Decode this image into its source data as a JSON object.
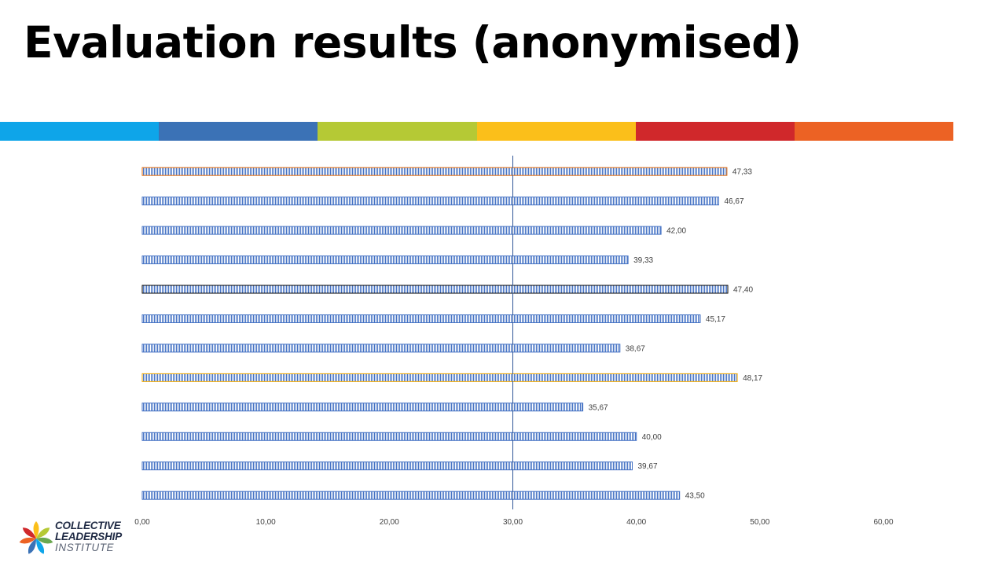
{
  "slide": {
    "title": "Evaluation results (anonymised)"
  },
  "stripe_colors": [
    "#0ea5e9",
    "#3b72b6",
    "#b5c935",
    "#fbbf1a",
    "#d0282b",
    "#ec6224"
  ],
  "chart_data": {
    "type": "bar",
    "orientation": "horizontal",
    "title": "",
    "xlabel": "",
    "ylabel": "",
    "xlim": [
      0,
      60
    ],
    "x_ticks": [
      "0,00",
      "10,00",
      "20,00",
      "30,00",
      "40,00",
      "50,00",
      "60,00"
    ],
    "reference_line": 30,
    "values": [
      47.33,
      46.67,
      42.0,
      39.33,
      47.4,
      45.17,
      38.67,
      48.17,
      35.67,
      40.0,
      39.67,
      43.5
    ],
    "data_labels": [
      "47,33",
      "46,67",
      "42,00",
      "39,33",
      "47,40",
      "45,17",
      "38,67",
      "48,17",
      "35,67",
      "40,00",
      "39,67",
      "43,50"
    ],
    "bar_fill_color": "#4472c4",
    "bar_outline_colors": [
      "#e46c0a",
      "#4472c4",
      "#4472c4",
      "#4472c4",
      "#000000",
      "#4472c4",
      "#4472c4",
      "#f2a900",
      "#4472c4",
      "#4472c4",
      "#4472c4",
      "#4472c4"
    ],
    "reference_line_color": "#2e5597",
    "grid": false,
    "legend": "none"
  },
  "logo": {
    "line1": "COLLECTIVE",
    "line2": "LEADERSHIP",
    "line3": "INSTITUTE",
    "colors": [
      "#fbbf1a",
      "#b5c935",
      "#6aa84f",
      "#0ea5e9",
      "#3b72b6",
      "#ec6224",
      "#d0282b"
    ]
  }
}
